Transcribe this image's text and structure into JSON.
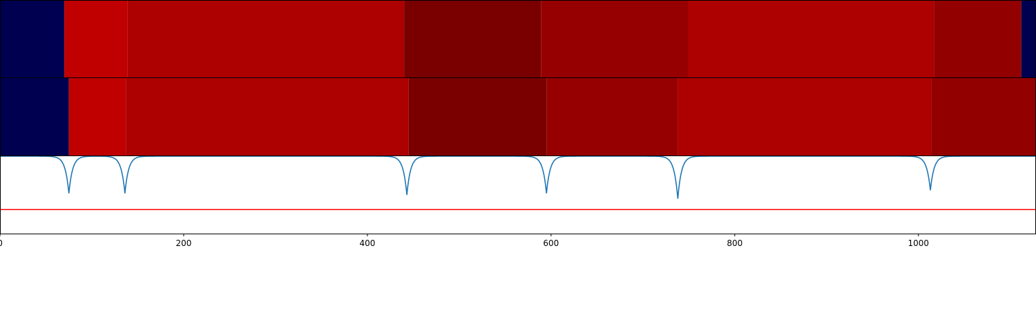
{
  "chart_data": {
    "type": "heatmap",
    "x_range": [
      0,
      1128
    ],
    "x_ticks": [
      {
        "value": 0,
        "label": "0"
      },
      {
        "value": 200,
        "label": "200"
      },
      {
        "value": 400,
        "label": "400"
      },
      {
        "value": 600,
        "label": "600"
      },
      {
        "value": 800,
        "label": "800"
      },
      {
        "value": 1000,
        "label": "1000"
      }
    ],
    "segment_rows": [
      {
        "segments": [
          {
            "start": 0,
            "end": 70,
            "color": "#000050"
          },
          {
            "start": 70,
            "end": 139,
            "color": "#c00000"
          },
          {
            "start": 139,
            "end": 440,
            "color": "#ad0000"
          },
          {
            "start": 440,
            "end": 589,
            "color": "#7a0000"
          },
          {
            "start": 589,
            "end": 749,
            "color": "#960000"
          },
          {
            "start": 749,
            "end": 1017,
            "color": "#ad0000"
          },
          {
            "start": 1017,
            "end": 1112,
            "color": "#920000"
          },
          {
            "start": 1112,
            "end": 1128,
            "color": "#000050"
          }
        ]
      },
      {
        "segments": [
          {
            "start": 0,
            "end": 75,
            "color": "#000050"
          },
          {
            "start": 75,
            "end": 137,
            "color": "#c00000"
          },
          {
            "start": 137,
            "end": 445,
            "color": "#ad0000"
          },
          {
            "start": 445,
            "end": 595,
            "color": "#7a0000"
          },
          {
            "start": 595,
            "end": 738,
            "color": "#960000"
          },
          {
            "start": 738,
            "end": 1014,
            "color": "#ad0000"
          },
          {
            "start": 1014,
            "end": 1128,
            "color": "#920000"
          }
        ]
      }
    ],
    "signal": {
      "color": "#1f77b4",
      "baseline": 1.0,
      "ylim": [
        0,
        1.0
      ],
      "dips": [
        {
          "x": 75,
          "depth": 0.48,
          "width": 4
        },
        {
          "x": 136,
          "depth": 0.48,
          "width": 4
        },
        {
          "x": 443,
          "depth": 0.5,
          "width": 4
        },
        {
          "x": 595,
          "depth": 0.48,
          "width": 4
        },
        {
          "x": 738,
          "depth": 0.55,
          "width": 4
        },
        {
          "x": 1013,
          "depth": 0.44,
          "width": 4
        }
      ]
    },
    "threshold": {
      "value": 0.31,
      "color": "#ff0000"
    },
    "grid": false,
    "legend": "none"
  }
}
